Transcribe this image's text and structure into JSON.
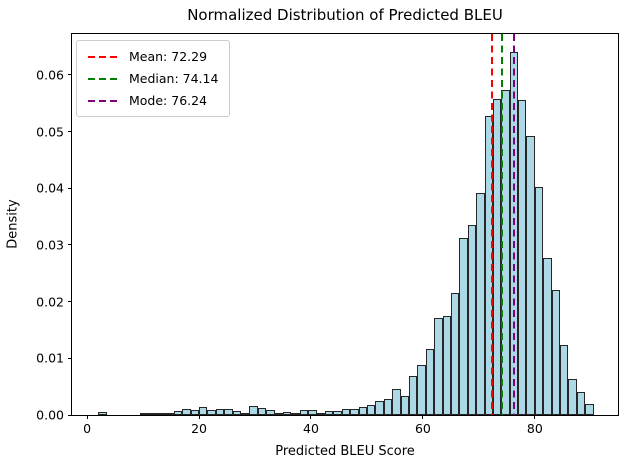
{
  "chart_data": {
    "type": "histogram",
    "title": "Normalized Distribution of Predicted BLEU",
    "xlabel": "Predicted BLEU Score",
    "ylabel": "Density",
    "bin_start": 2.0,
    "bin_width": 1.5,
    "densities": [
      0.0005,
      0,
      0,
      0,
      0,
      0.0003,
      0.0004,
      0.0003,
      0.0002,
      0.0007,
      0.0011,
      0.0008,
      0.0015,
      0.0008,
      0.001,
      0.0011,
      0.0007,
      0.0004,
      0.0016,
      0.0012,
      0.0009,
      0.0004,
      0.0006,
      0.0004,
      0.0008,
      0.0008,
      0.0004,
      0.0007,
      0.0007,
      0.0011,
      0.0011,
      0.0014,
      0.0018,
      0.0025,
      0.0029,
      0.0046,
      0.0033,
      0.0069,
      0.0088,
      0.0116,
      0.0171,
      0.0175,
      0.0215,
      0.0313,
      0.0335,
      0.0391,
      0.0528,
      0.0557,
      0.0574,
      0.064,
      0.0556,
      0.0492,
      0.0402,
      0.0277,
      0.0221,
      0.0123,
      0.0063,
      0.004,
      0.0019
    ],
    "xlim": [
      -2.7,
      94.85
    ],
    "ylim": [
      0,
      0.0672
    ],
    "xticks": {
      "values": [
        0,
        20,
        40,
        60,
        80
      ],
      "labels": [
        "0",
        "20",
        "40",
        "60",
        "80"
      ]
    },
    "yticks": {
      "values": [
        0,
        0.01,
        0.02,
        0.03,
        0.04,
        0.05,
        0.06
      ],
      "labels": [
        "0.00",
        "0.01",
        "0.02",
        "0.03",
        "0.04",
        "0.05",
        "0.06"
      ]
    },
    "bar_fill": "#ADD8E6",
    "bar_edge": "#262626",
    "grid": false,
    "legend_position": "upper left",
    "vlines": [
      {
        "name": "mean",
        "value": 72.29,
        "color": "#ff0000",
        "style": "dashed",
        "label": "Mean: 72.29"
      },
      {
        "name": "median",
        "value": 74.14,
        "color": "#008000",
        "style": "dashed",
        "label": "Median: 74.14"
      },
      {
        "name": "mode",
        "value": 76.24,
        "color": "#800080",
        "style": "dashed",
        "label": "Mode: 76.24"
      }
    ]
  }
}
